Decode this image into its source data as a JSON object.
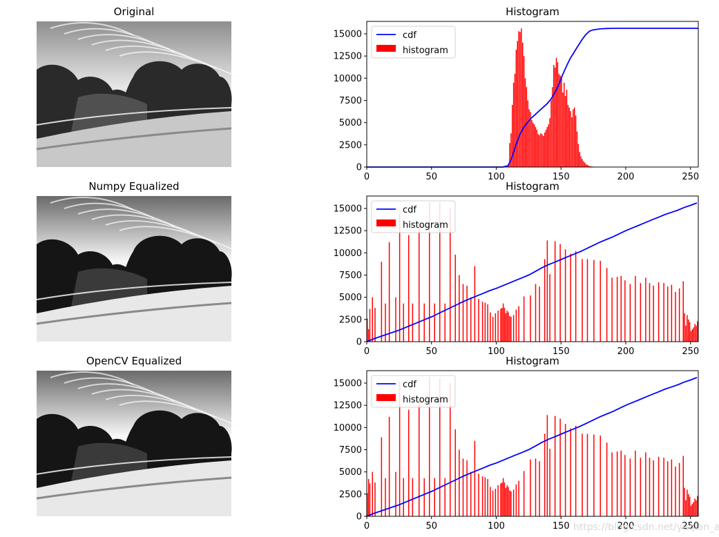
{
  "figure": {
    "watermark": "https://blog.csdn.net/yuqian_ai",
    "colors": {
      "histogram": "#ff0000",
      "cdf": "#0000ff",
      "axis": "#000000",
      "background": "#ffffff"
    }
  },
  "panels": [
    {
      "id": "original",
      "title": "Original",
      "image_desc": "grayscale landscape: dark storm clouds over bright sky and grassy slope"
    },
    {
      "id": "numpy",
      "title": "Numpy Equalized",
      "image_desc": "histogram-equalized grayscale landscape with higher contrast"
    },
    {
      "id": "opencv",
      "title": "OpenCV Equalized",
      "image_desc": "histogram-equalized grayscale landscape with higher contrast"
    }
  ],
  "chart_data": [
    {
      "type": "bar",
      "id": "hist-original",
      "title": "Histogram",
      "xlabel": "",
      "ylabel": "",
      "xlim": [
        0,
        256
      ],
      "ylim": [
        0,
        16400
      ],
      "xticks": [
        0,
        50,
        100,
        150,
        200,
        250
      ],
      "yticks": [
        0,
        2500,
        5000,
        7500,
        10000,
        12500,
        15000
      ],
      "legend": {
        "placement": "top-left",
        "entries": [
          "cdf",
          "histogram"
        ]
      },
      "series": [
        {
          "name": "histogram",
          "style": "bar",
          "x": [
            109,
            110,
            111,
            112,
            113,
            114,
            115,
            116,
            117,
            118,
            119,
            120,
            121,
            122,
            123,
            124,
            125,
            126,
            127,
            128,
            129,
            130,
            131,
            132,
            133,
            134,
            135,
            136,
            137,
            138,
            139,
            140,
            141,
            142,
            143,
            144,
            145,
            146,
            147,
            148,
            149,
            150,
            151,
            152,
            153,
            154,
            155,
            156,
            157,
            158,
            159,
            160,
            161,
            162,
            163,
            164,
            165,
            166,
            167,
            168,
            169,
            170,
            171,
            172,
            173,
            174,
            175,
            176,
            177,
            178,
            179,
            180,
            181,
            182,
            183,
            184,
            185,
            186,
            187,
            188,
            189
          ],
          "values": [
            200,
            2700,
            3800,
            7000,
            9500,
            10500,
            13200,
            14200,
            15300,
            15200,
            15600,
            14000,
            12500,
            10000,
            9000,
            7500,
            6500,
            6200,
            5300,
            5000,
            4800,
            4500,
            4200,
            3700,
            3600,
            3800,
            3700,
            3500,
            3900,
            4200,
            4500,
            4800,
            5500,
            7500,
            9000,
            11500,
            11200,
            12300,
            11800,
            10500,
            10300,
            10000,
            8400,
            9500,
            8000,
            8700,
            7000,
            6700,
            6300,
            5600,
            6500,
            6700,
            5800,
            4000,
            2600,
            1700,
            1200,
            900,
            650,
            500,
            300,
            250,
            150,
            100,
            80,
            60,
            40,
            30,
            20,
            20,
            20,
            10,
            10,
            10,
            10,
            10,
            10,
            10,
            10,
            10,
            10
          ]
        },
        {
          "name": "cdf",
          "style": "line",
          "x": [
            0,
            105,
            109,
            112,
            115,
            118,
            121,
            124,
            127,
            130,
            133,
            136,
            139,
            142,
            145,
            148,
            151,
            154,
            157,
            160,
            163,
            166,
            169,
            172,
            175,
            180,
            185,
            190,
            256
          ],
          "values": [
            0,
            0,
            150,
            1000,
            2400,
            3600,
            4400,
            5000,
            5500,
            5900,
            6300,
            6700,
            7100,
            7600,
            8300,
            9200,
            10300,
            11300,
            12200,
            12900,
            13600,
            14300,
            14900,
            15300,
            15450,
            15550,
            15600,
            15620,
            15620
          ]
        }
      ]
    },
    {
      "type": "bar",
      "id": "hist-numpy",
      "title": "Histogram",
      "xlabel": "",
      "ylabel": "",
      "xlim": [
        0,
        256
      ],
      "ylim": [
        0,
        16400
      ],
      "xticks": [
        0,
        50,
        100,
        150,
        200,
        250
      ],
      "yticks": [
        0,
        2500,
        5000,
        7500,
        10000,
        12500,
        15000
      ],
      "legend": {
        "placement": "top-left",
        "entries": [
          "cdf",
          "histogram"
        ]
      },
      "series": [
        {
          "name": "histogram",
          "style": "bar",
          "x": [
            0,
            1,
            2,
            4,
            6,
            11,
            14,
            17,
            22,
            25,
            28,
            32,
            35,
            40,
            44,
            48,
            52,
            56,
            60,
            64,
            68,
            71,
            74,
            77,
            80,
            83,
            86,
            89,
            91,
            93,
            95,
            97,
            99,
            101,
            103,
            104,
            105,
            106,
            107,
            108,
            109,
            110,
            111,
            113,
            115,
            117,
            121,
            126,
            130,
            133,
            137,
            139,
            141,
            145,
            149,
            153,
            157,
            161,
            166,
            170,
            175,
            180,
            185,
            189,
            193,
            196,
            199,
            203,
            207,
            211,
            215,
            218,
            221,
            225,
            229,
            232,
            235,
            238,
            241,
            244,
            245,
            246,
            247,
            248,
            249,
            250,
            251,
            252,
            253,
            254,
            255
          ],
          "values": [
            2600,
            1400,
            3700,
            5000,
            3800,
            9000,
            4300,
            11200,
            5000,
            14500,
            4300,
            12000,
            4300,
            13200,
            4300,
            15700,
            4300,
            15700,
            4300,
            15000,
            9800,
            7500,
            6500,
            6300,
            5000,
            8500,
            4800,
            4500,
            4400,
            4200,
            3300,
            2800,
            3200,
            3500,
            3700,
            3800,
            4300,
            3800,
            3200,
            3500,
            3300,
            2900,
            2800,
            3000,
            3600,
            4000,
            5100,
            5200,
            6500,
            6200,
            9300,
            11400,
            7600,
            11300,
            11000,
            10400,
            9900,
            10200,
            9300,
            9300,
            9200,
            9100,
            8300,
            7200,
            7300,
            7400,
            6900,
            6500,
            7400,
            6600,
            7200,
            6600,
            6300,
            6700,
            6600,
            6200,
            6400,
            5600,
            6000,
            6800,
            3200,
            1800,
            3000,
            2500,
            2200,
            1200,
            1400,
            1600,
            2000,
            1800,
            2300
          ]
        },
        {
          "name": "cdf",
          "style": "line",
          "x": [
            0,
            5,
            10,
            15,
            20,
            25,
            30,
            35,
            40,
            45,
            50,
            55,
            60,
            65,
            70,
            75,
            80,
            85,
            90,
            95,
            100,
            105,
            110,
            115,
            120,
            125,
            130,
            135,
            140,
            145,
            150,
            155,
            160,
            165,
            170,
            175,
            180,
            185,
            190,
            195,
            200,
            205,
            210,
            215,
            220,
            225,
            230,
            235,
            240,
            245,
            250,
            255
          ],
          "values": [
            0,
            300,
            550,
            800,
            1050,
            1300,
            1600,
            1900,
            2200,
            2500,
            2800,
            3150,
            3500,
            3850,
            4200,
            4550,
            4850,
            5150,
            5450,
            5750,
            6000,
            6300,
            6600,
            6900,
            7200,
            7500,
            7900,
            8300,
            8650,
            8950,
            9250,
            9550,
            9850,
            10150,
            10500,
            10850,
            11200,
            11500,
            11800,
            12150,
            12500,
            12800,
            13100,
            13400,
            13700,
            14000,
            14300,
            14550,
            14800,
            15100,
            15350,
            15620
          ]
        }
      ]
    },
    {
      "type": "bar",
      "id": "hist-opencv",
      "title": "Histogram",
      "xlabel": "",
      "ylabel": "",
      "xlim": [
        0,
        256
      ],
      "ylim": [
        0,
        16400
      ],
      "xticks": [
        0,
        50,
        100,
        150,
        200,
        250
      ],
      "yticks": [
        0,
        2500,
        5000,
        7500,
        10000,
        12500,
        15000
      ],
      "legend": {
        "placement": "top-left",
        "entries": [
          "cdf",
          "histogram"
        ]
      },
      "series": [
        {
          "name": "histogram",
          "style": "bar",
          "x": [
            0,
            1,
            2,
            4,
            6,
            11,
            14,
            17,
            22,
            25,
            28,
            32,
            35,
            40,
            44,
            48,
            52,
            56,
            60,
            64,
            68,
            71,
            74,
            77,
            80,
            83,
            86,
            89,
            91,
            93,
            95,
            97,
            99,
            101,
            103,
            104,
            105,
            106,
            107,
            108,
            109,
            110,
            111,
            113,
            115,
            117,
            121,
            126,
            130,
            133,
            137,
            139,
            141,
            145,
            149,
            153,
            157,
            161,
            166,
            170,
            175,
            180,
            185,
            189,
            193,
            196,
            199,
            203,
            207,
            211,
            215,
            218,
            221,
            225,
            229,
            232,
            235,
            238,
            241,
            244,
            245,
            246,
            247,
            248,
            249,
            250,
            251,
            252,
            253,
            254,
            255
          ],
          "values": [
            2600,
            4200,
            3700,
            5000,
            3800,
            8900,
            4300,
            11200,
            5000,
            15200,
            4300,
            12000,
            4300,
            13200,
            4300,
            15700,
            4300,
            15500,
            4300,
            15000,
            9800,
            7500,
            6500,
            6300,
            5000,
            8500,
            4800,
            4500,
            4400,
            4200,
            3300,
            2900,
            3100,
            3500,
            3700,
            3800,
            4300,
            3800,
            3200,
            3500,
            3300,
            2900,
            2800,
            3000,
            3600,
            4000,
            5100,
            6400,
            6500,
            6200,
            9300,
            11400,
            7600,
            11300,
            11000,
            10400,
            9900,
            10200,
            9300,
            9300,
            9200,
            9100,
            8300,
            7200,
            7300,
            7400,
            6900,
            6500,
            7400,
            6600,
            7200,
            6600,
            6300,
            6700,
            6600,
            6200,
            6400,
            5600,
            6000,
            6800,
            3200,
            1800,
            3000,
            2500,
            2200,
            1200,
            1400,
            1600,
            2000,
            1800,
            2300
          ]
        },
        {
          "name": "cdf",
          "style": "line",
          "x": [
            0,
            5,
            10,
            15,
            20,
            25,
            30,
            35,
            40,
            45,
            50,
            55,
            60,
            65,
            70,
            75,
            80,
            85,
            90,
            95,
            100,
            105,
            110,
            115,
            120,
            125,
            130,
            135,
            140,
            145,
            150,
            155,
            160,
            165,
            170,
            175,
            180,
            185,
            190,
            195,
            200,
            205,
            210,
            215,
            220,
            225,
            230,
            235,
            240,
            245,
            250,
            255
          ],
          "values": [
            0,
            300,
            550,
            800,
            1050,
            1300,
            1600,
            1900,
            2200,
            2500,
            2800,
            3150,
            3500,
            3850,
            4200,
            4550,
            4850,
            5150,
            5450,
            5750,
            6000,
            6300,
            6600,
            6900,
            7200,
            7500,
            7900,
            8300,
            8650,
            8950,
            9250,
            9550,
            9850,
            10150,
            10500,
            10850,
            11200,
            11500,
            11800,
            12150,
            12500,
            12800,
            13100,
            13400,
            13700,
            14000,
            14300,
            14550,
            14800,
            15100,
            15350,
            15620
          ]
        }
      ]
    }
  ]
}
